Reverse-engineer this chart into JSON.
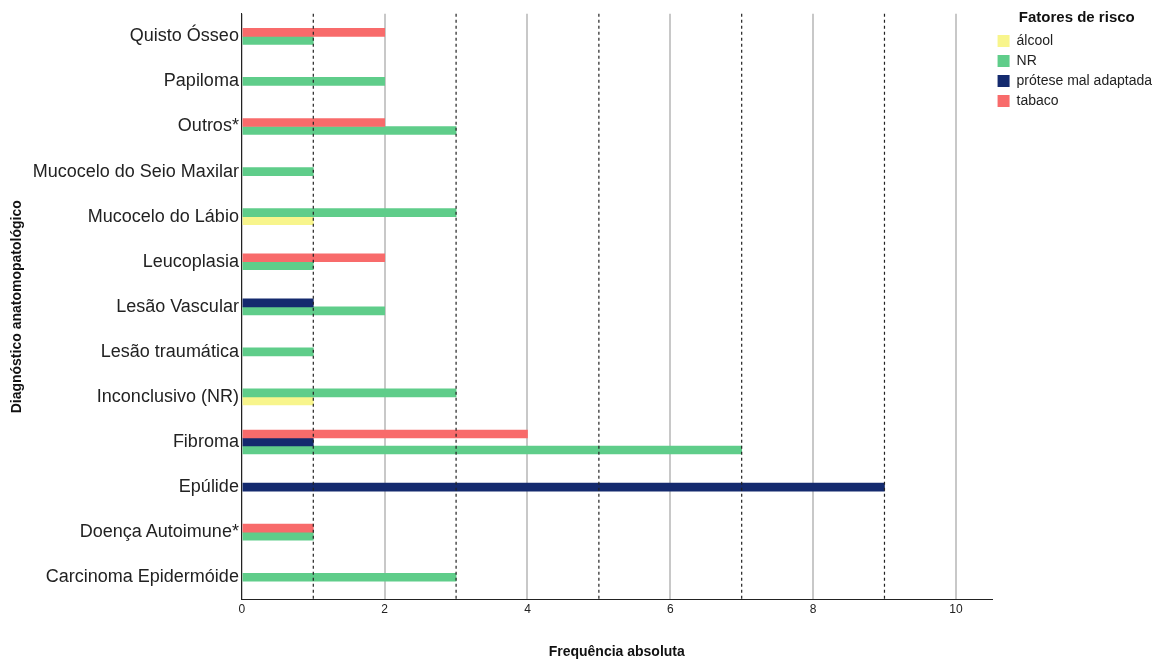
{
  "chart_data": {
    "type": "bar",
    "orientation": "horizontal",
    "xlabel": "Frequência absoluta",
    "ylabel": "Diagnóstico anatomopatológico",
    "legend_title": "Fatores de risco",
    "legend": "top right",
    "grid": "x",
    "categories": [
      "Quisto Ósseo",
      "Papiloma",
      "Outros*",
      "Mucocelo do Seio Maxilar",
      "Mucocelo do Lábio",
      "Leucoplasia",
      "Lesão Vascular",
      "Lesão traumática",
      "Inconclusivo (NR)",
      "Fibroma",
      "Epúlide",
      "Doença Autoimune*",
      "Carcinoma Epidermóide"
    ],
    "series": [
      {
        "name": "álcool",
        "color": "#f8f58c",
        "values": [
          null,
          null,
          null,
          null,
          1,
          null,
          null,
          null,
          1,
          null,
          null,
          null,
          null
        ]
      },
      {
        "name": "NR",
        "color": "#5fcd8a",
        "values": [
          1,
          2,
          3,
          1,
          3,
          1,
          2,
          1,
          3,
          7,
          null,
          1,
          3
        ]
      },
      {
        "name": "prótese mal adaptada",
        "color": "#142a6e",
        "values": [
          null,
          null,
          null,
          null,
          null,
          null,
          1,
          null,
          null,
          1,
          9,
          null,
          null
        ]
      },
      {
        "name": "tabaco",
        "color": "#f86b6b",
        "values": [
          2,
          null,
          2,
          null,
          null,
          2,
          null,
          null,
          null,
          4,
          null,
          1,
          null
        ]
      }
    ],
    "xlim": [
      0,
      10.5
    ],
    "xticks": [
      0,
      2,
      4,
      6,
      8,
      10
    ],
    "ref_lines": [
      {
        "axis": "x",
        "value": 1,
        "line_style": "dotted"
      },
      {
        "axis": "x",
        "value": 3,
        "line_style": "dotted"
      },
      {
        "axis": "x",
        "value": 5,
        "line_style": "dotted"
      },
      {
        "axis": "x",
        "value": 7,
        "line_style": "dotted"
      },
      {
        "axis": "x",
        "value": 9,
        "line_style": "dotted"
      }
    ]
  }
}
